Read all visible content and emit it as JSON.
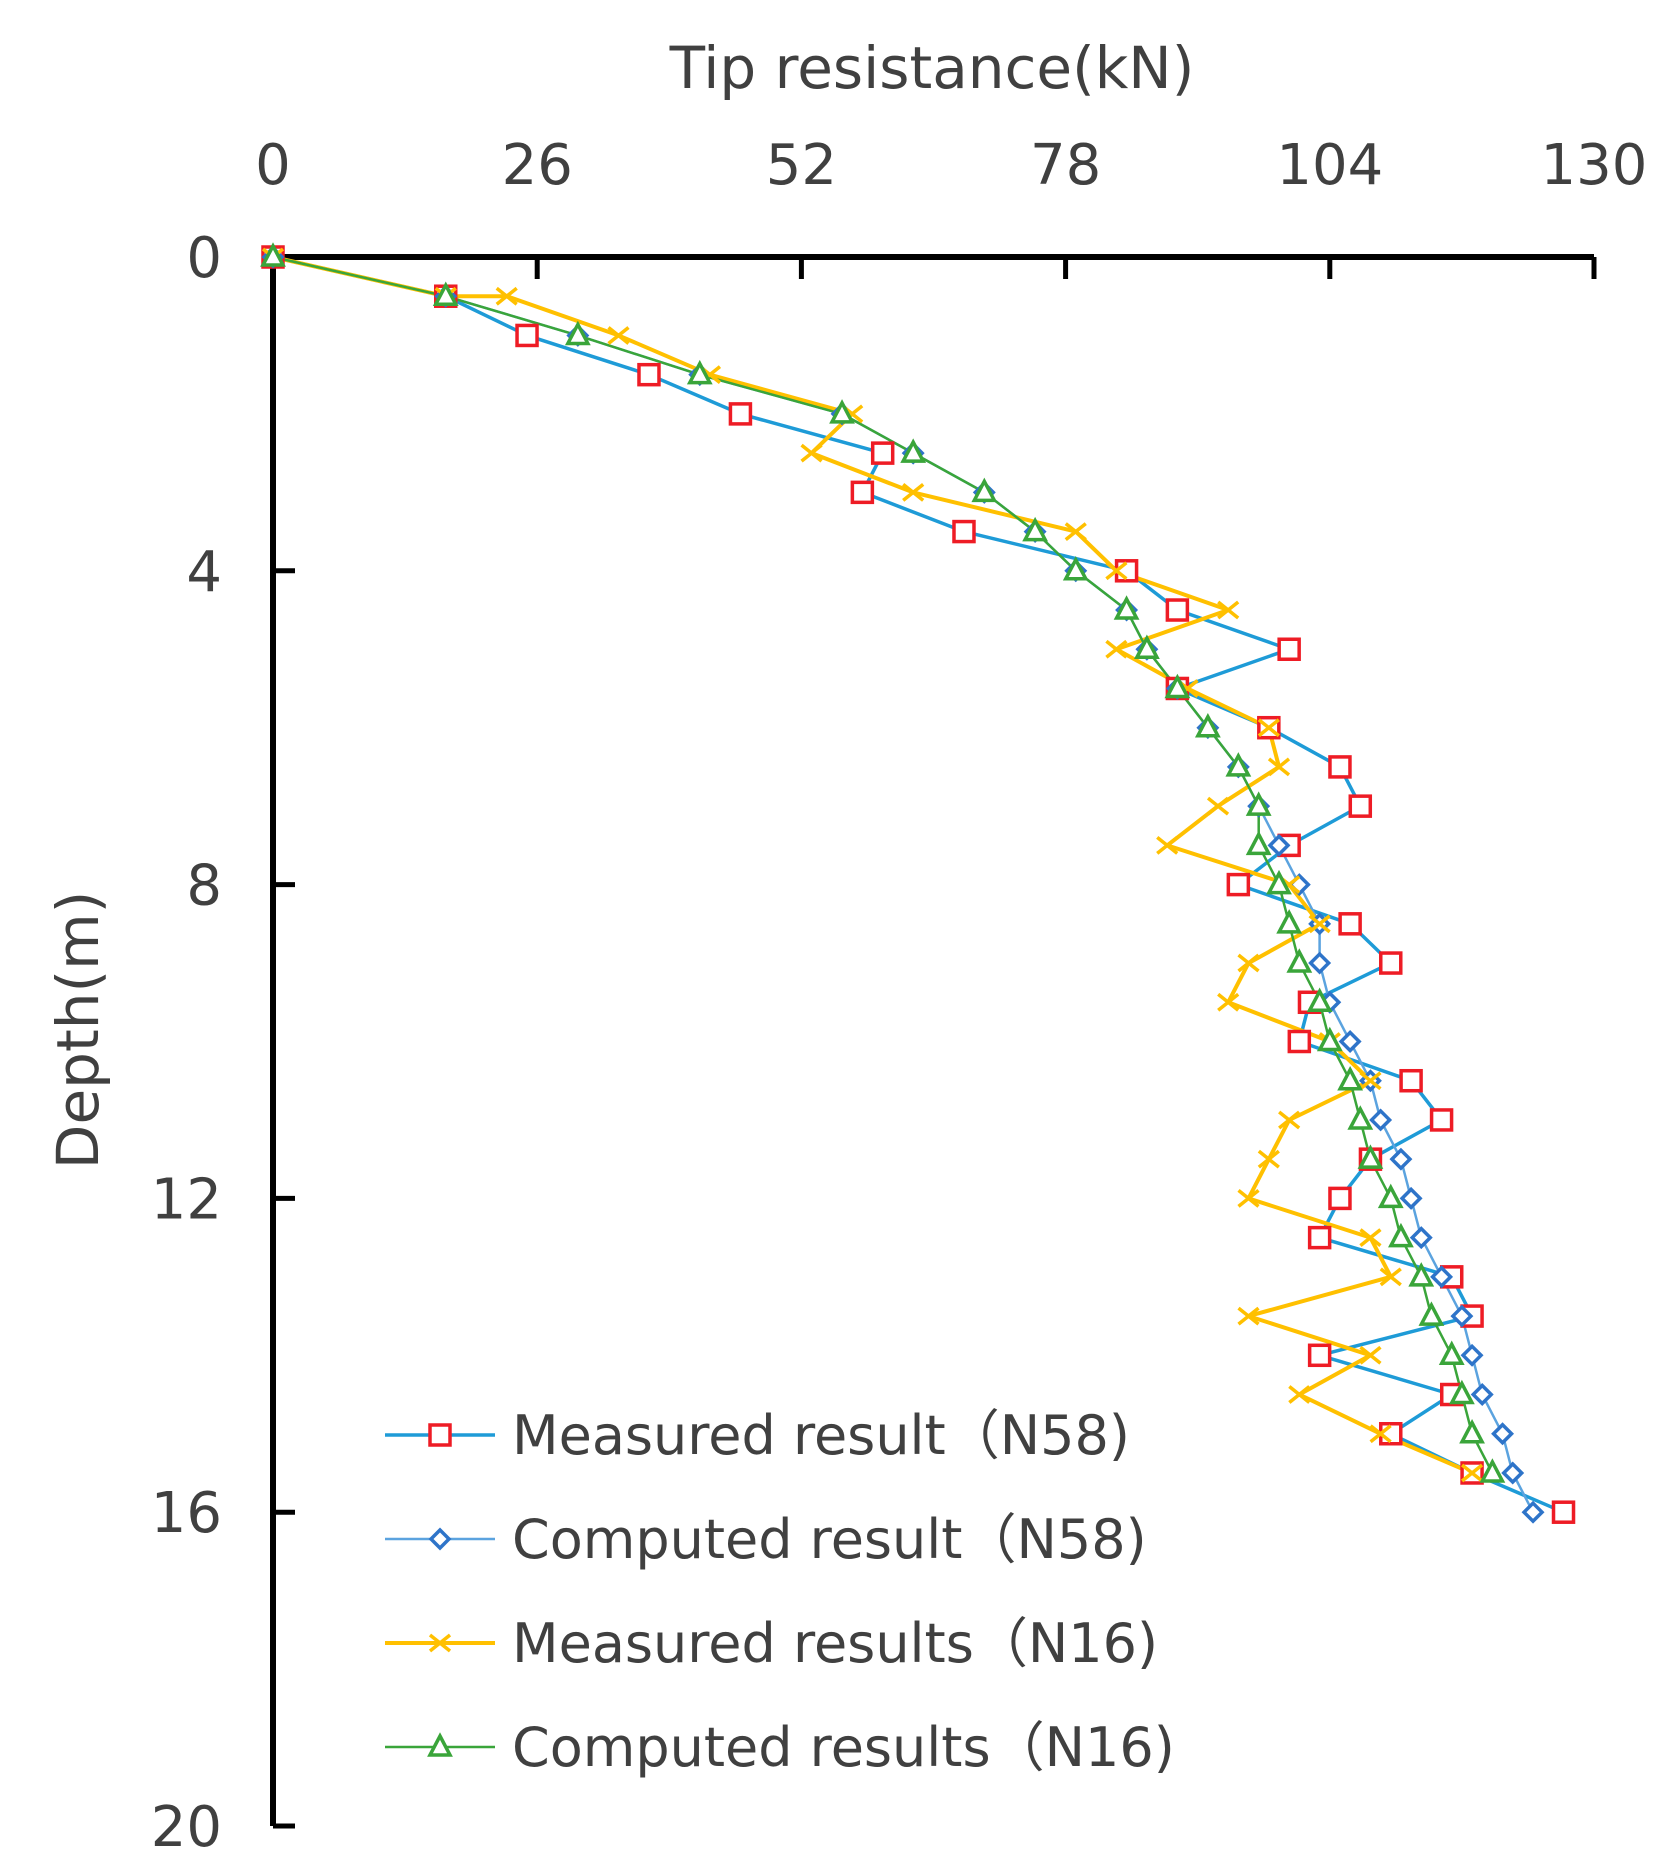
{
  "chart_data": {
    "type": "line",
    "title": "",
    "xlabel": "Tip resistance(kN)",
    "ylabel": "Depth(m)",
    "xlim": [
      0,
      130
    ],
    "ylim": [
      0,
      20
    ],
    "x_ticks": [
      "0",
      "26",
      "52",
      "78",
      "104",
      "130"
    ],
    "y_ticks": [
      "0",
      "4",
      "8",
      "12",
      "16",
      "20"
    ],
    "axis_position": {
      "x": "top",
      "y": "left",
      "y_direction": "down"
    },
    "legend_position": "bottom-left",
    "series": [
      {
        "name": "Measured result（N58)",
        "marker": "square",
        "line_color": "#1e9bd7",
        "marker_color": "#ee1c25",
        "points": [
          [
            0,
            0
          ],
          [
            17,
            0.5
          ],
          [
            25,
            1
          ],
          [
            37,
            1.5
          ],
          [
            46,
            2
          ],
          [
            60,
            2.5
          ],
          [
            58,
            3
          ],
          [
            68,
            3.5
          ],
          [
            84,
            4
          ],
          [
            89,
            4.5
          ],
          [
            100,
            5
          ],
          [
            89,
            5.5
          ],
          [
            98,
            6
          ],
          [
            105,
            6.5
          ],
          [
            107,
            7
          ],
          [
            100,
            7.5
          ],
          [
            95,
            8
          ],
          [
            106,
            8.5
          ],
          [
            110,
            9
          ],
          [
            102,
            9.5
          ],
          [
            101,
            10
          ],
          [
            112,
            10.5
          ],
          [
            115,
            11
          ],
          [
            108,
            11.5
          ],
          [
            105,
            12
          ],
          [
            103,
            12.5
          ],
          [
            116,
            13
          ],
          [
            118,
            13.5
          ],
          [
            103,
            14
          ],
          [
            116,
            14.5
          ],
          [
            110,
            15
          ],
          [
            118,
            15.5
          ],
          [
            127,
            16
          ]
        ]
      },
      {
        "name": "Computed result（N58)",
        "marker": "diamond",
        "line_color": "#5ba3df",
        "marker_color": "#2e74c9",
        "points": [
          [
            0,
            0
          ],
          [
            17,
            0.5
          ],
          [
            30,
            1
          ],
          [
            42,
            1.5
          ],
          [
            56,
            2
          ],
          [
            63,
            2.5
          ],
          [
            70,
            3
          ],
          [
            75,
            3.5
          ],
          [
            79,
            4
          ],
          [
            84,
            4.5
          ],
          [
            86,
            5
          ],
          [
            89,
            5.5
          ],
          [
            92,
            6
          ],
          [
            95,
            6.5
          ],
          [
            97,
            7
          ],
          [
            99,
            7.5
          ],
          [
            101,
            8
          ],
          [
            103,
            8.5
          ],
          [
            103,
            9
          ],
          [
            104,
            9.5
          ],
          [
            106,
            10
          ],
          [
            108,
            10.5
          ],
          [
            109,
            11
          ],
          [
            111,
            11.5
          ],
          [
            112,
            12
          ],
          [
            113,
            12.5
          ],
          [
            115,
            13
          ],
          [
            117,
            13.5
          ],
          [
            118,
            14
          ],
          [
            119,
            14.5
          ],
          [
            121,
            15
          ],
          [
            122,
            15.5
          ],
          [
            124,
            16
          ]
        ]
      },
      {
        "name": "Measured results（N16)",
        "marker": "x",
        "line_color": "#ffc000",
        "marker_color": "#ffc000",
        "points": [
          [
            0,
            0
          ],
          [
            17,
            0.5
          ],
          [
            23,
            0.5
          ],
          [
            34,
            1
          ],
          [
            43,
            1.5
          ],
          [
            57,
            2
          ],
          [
            53,
            2.5
          ],
          [
            63,
            3
          ],
          [
            79,
            3.5
          ],
          [
            83,
            4
          ],
          [
            94,
            4.5
          ],
          [
            83,
            5
          ],
          [
            90,
            5.5
          ],
          [
            98,
            6
          ],
          [
            99,
            6.5
          ],
          [
            93,
            7
          ],
          [
            88,
            7.5
          ],
          [
            100,
            8
          ],
          [
            103,
            8.5
          ],
          [
            96,
            9
          ],
          [
            94,
            9.5
          ],
          [
            104,
            10
          ],
          [
            108,
            10.5
          ],
          [
            100,
            11
          ],
          [
            98,
            11.5
          ],
          [
            96,
            12
          ],
          [
            108,
            12.5
          ],
          [
            110,
            13
          ],
          [
            96,
            13.5
          ],
          [
            108,
            14
          ],
          [
            101,
            14.5
          ],
          [
            109,
            15
          ],
          [
            118,
            15.5
          ]
        ]
      },
      {
        "name": "Computed results（N16)",
        "marker": "triangle",
        "line_color": "#3aa53a",
        "marker_color": "#3aa53a",
        "points": [
          [
            0,
            0
          ],
          [
            17,
            0.5
          ],
          [
            30,
            1
          ],
          [
            42,
            1.5
          ],
          [
            56,
            2
          ],
          [
            63,
            2.5
          ],
          [
            70,
            3
          ],
          [
            75,
            3.5
          ],
          [
            79,
            4
          ],
          [
            84,
            4.5
          ],
          [
            86,
            5
          ],
          [
            89,
            5.5
          ],
          [
            92,
            6
          ],
          [
            95,
            6.5
          ],
          [
            97,
            7
          ],
          [
            97,
            7.5
          ],
          [
            99,
            8
          ],
          [
            100,
            8.5
          ],
          [
            101,
            9
          ],
          [
            103,
            9.5
          ],
          [
            104,
            10
          ],
          [
            106,
            10.5
          ],
          [
            107,
            11
          ],
          [
            108,
            11.5
          ],
          [
            110,
            12
          ],
          [
            111,
            12.5
          ],
          [
            113,
            13
          ],
          [
            114,
            13.5
          ],
          [
            116,
            14
          ],
          [
            117,
            14.5
          ],
          [
            118,
            15
          ],
          [
            120,
            15.5
          ]
        ]
      }
    ]
  }
}
